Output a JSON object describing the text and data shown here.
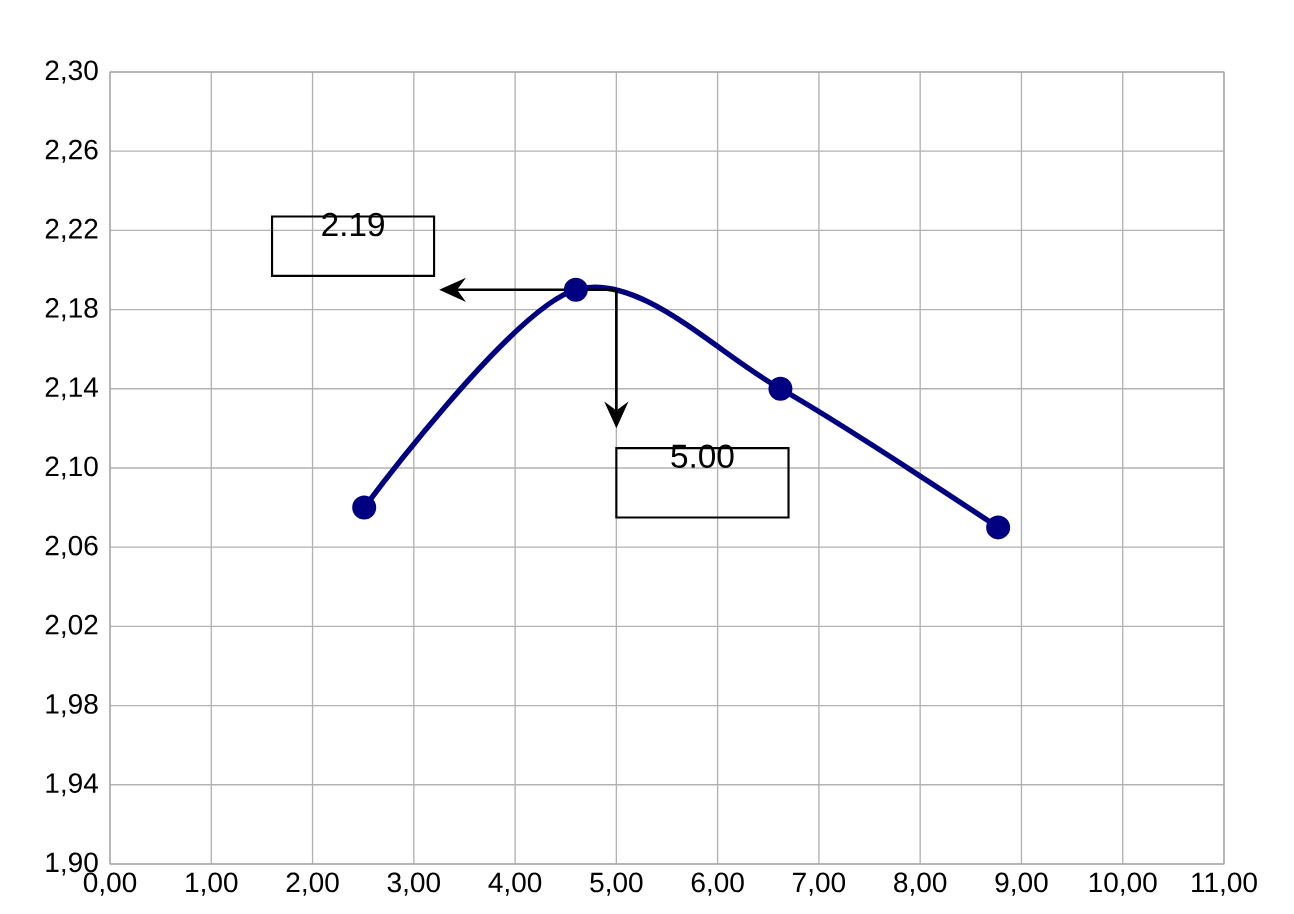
{
  "chart_data": {
    "type": "line",
    "series": [
      {
        "color": "#000080",
        "x": [
          2.51,
          4.6,
          6.62,
          8.77
        ],
        "values": [
          2.08,
          2.19,
          2.14,
          2.07
        ]
      }
    ],
    "xlim": [
      0,
      11
    ],
    "ylim": [
      1.9,
      2.3
    ],
    "xticks": [
      {
        "value": 0,
        "label": "0,00"
      },
      {
        "value": 1,
        "label": "1,00"
      },
      {
        "value": 2,
        "label": "2,00"
      },
      {
        "value": 3,
        "label": "3,00"
      },
      {
        "value": 4,
        "label": "4,00"
      },
      {
        "value": 5,
        "label": "5,00"
      },
      {
        "value": 6,
        "label": "6,00"
      },
      {
        "value": 7,
        "label": "7,00"
      },
      {
        "value": 8,
        "label": "8,00"
      },
      {
        "value": 9,
        "label": "9,00"
      },
      {
        "value": 10,
        "label": "10,00"
      },
      {
        "value": 11,
        "label": "11,00"
      }
    ],
    "yticks": [
      {
        "value": 1.9,
        "label": "1,90"
      },
      {
        "value": 1.94,
        "label": "1,94"
      },
      {
        "value": 1.98,
        "label": "1,98"
      },
      {
        "value": 2.02,
        "label": "2,02"
      },
      {
        "value": 2.06,
        "label": "2,06"
      },
      {
        "value": 2.1,
        "label": "2,10"
      },
      {
        "value": 2.14,
        "label": "2,14"
      },
      {
        "value": 2.18,
        "label": "2,18"
      },
      {
        "value": 2.22,
        "label": "2,22"
      },
      {
        "value": 2.26,
        "label": "2,26"
      },
      {
        "value": 2.3,
        "label": "2,30"
      }
    ],
    "grid": true,
    "marker": "circle",
    "line_style": "solid",
    "annotations": [
      "2.19",
      "5.00"
    ]
  }
}
